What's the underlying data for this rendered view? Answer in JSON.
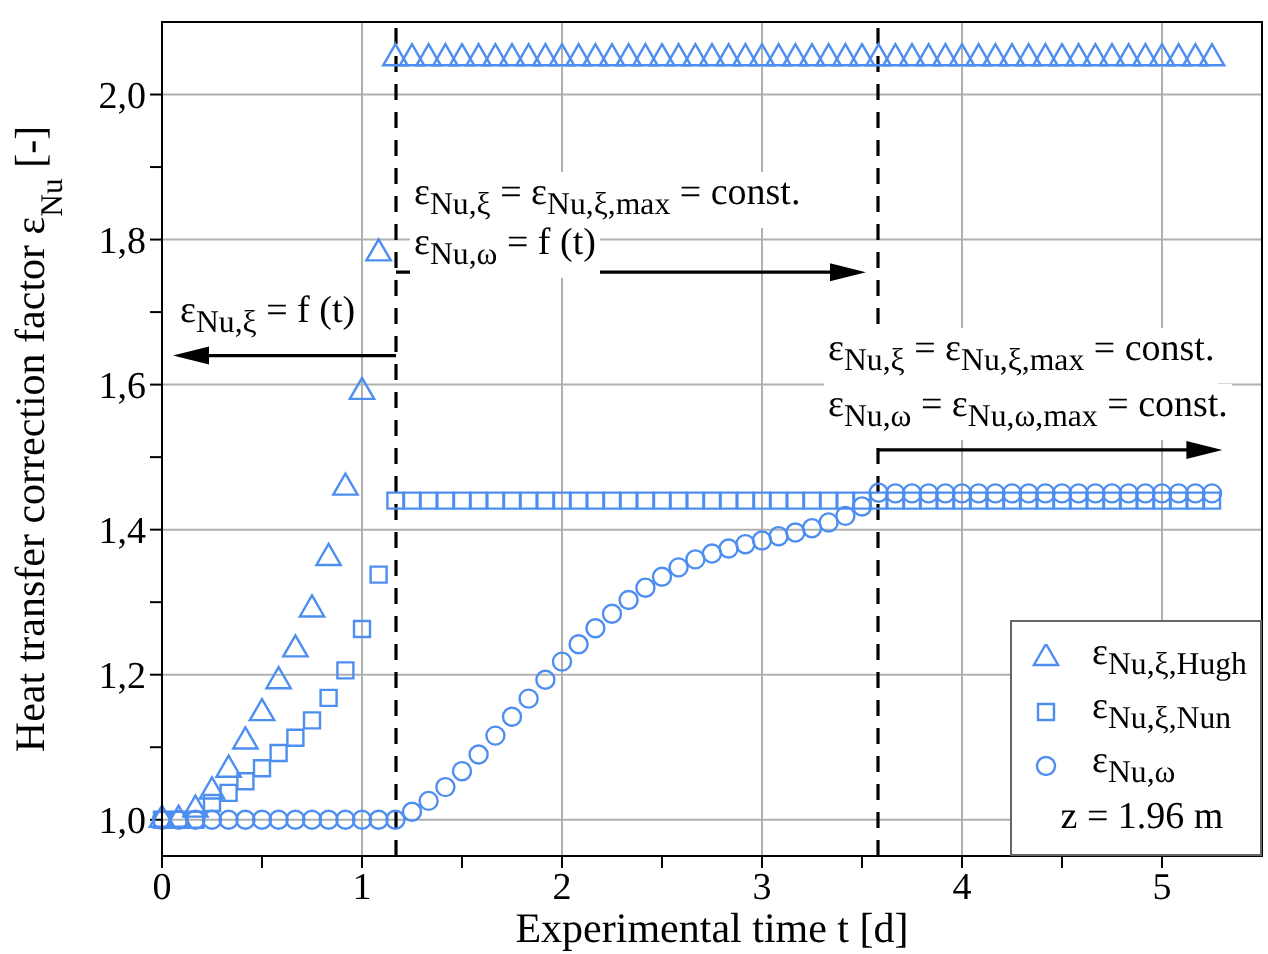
{
  "chart_data": {
    "type": "scatter",
    "xlabel": "Experimental time t [d]",
    "ylabel": "Heat transfer correction factor ε$_{Nu}$ [-]",
    "x": [
      0,
      0.083,
      0.167,
      0.25,
      0.333,
      0.417,
      0.5,
      0.583,
      0.667,
      0.75,
      0.833,
      0.917,
      1,
      1.083,
      1.167,
      1.25,
      1.333,
      1.417,
      1.5,
      1.583,
      1.667,
      1.75,
      1.833,
      1.917,
      2,
      2.083,
      2.167,
      2.25,
      2.333,
      2.417,
      2.5,
      2.583,
      2.667,
      2.75,
      2.833,
      2.917,
      3,
      3.083,
      3.167,
      3.25,
      3.333,
      3.417,
      3.5,
      3.583,
      3.667,
      3.75,
      3.833,
      3.917,
      4,
      4.083,
      4.167,
      4.25,
      4.333,
      4.417,
      4.5,
      4.583,
      4.667,
      4.75,
      4.833,
      4.917,
      5,
      5.083,
      5.167,
      5.25
    ],
    "series": [
      {
        "name": "ε$_{Nu,ξ,Hugh}$",
        "color": "#4d8ef0",
        "marker": "triangle",
        "values": [
          1.0,
          1.0,
          1.014,
          1.039,
          1.069,
          1.108,
          1.147,
          1.191,
          1.235,
          1.29,
          1.361,
          1.458,
          1.59,
          1.781,
          2.05,
          2.05,
          2.05,
          2.05,
          2.05,
          2.05,
          2.05,
          2.05,
          2.05,
          2.05,
          2.05,
          2.05,
          2.05,
          2.05,
          2.05,
          2.05,
          2.05,
          2.05,
          2.05,
          2.05,
          2.05,
          2.05,
          2.05,
          2.05,
          2.05,
          2.05,
          2.05,
          2.05,
          2.05,
          2.05,
          2.05,
          2.05,
          2.05,
          2.05,
          2.05,
          2.05,
          2.05,
          2.05,
          2.05,
          2.05,
          2.05,
          2.05,
          2.05,
          2.05,
          2.05,
          2.05,
          2.05,
          2.05,
          2.05,
          2.05
        ]
      },
      {
        "name": "ε$_{Nu,ξ,Nun}$",
        "color": "#4d8ef0",
        "marker": "square",
        "values": [
          1.0,
          1.0,
          1.0,
          1.023,
          1.037,
          1.053,
          1.071,
          1.092,
          1.113,
          1.137,
          1.168,
          1.206,
          1.263,
          1.338,
          1.44,
          1.44,
          1.44,
          1.44,
          1.44,
          1.44,
          1.44,
          1.44,
          1.44,
          1.44,
          1.44,
          1.44,
          1.44,
          1.44,
          1.44,
          1.44,
          1.44,
          1.44,
          1.44,
          1.44,
          1.44,
          1.44,
          1.44,
          1.44,
          1.44,
          1.44,
          1.44,
          1.44,
          1.44,
          1.44,
          1.44,
          1.44,
          1.44,
          1.44,
          1.44,
          1.44,
          1.44,
          1.44,
          1.44,
          1.44,
          1.44,
          1.44,
          1.44,
          1.44,
          1.44,
          1.44,
          1.44,
          1.44,
          1.44,
          1.44
        ]
      },
      {
        "name": "ε$_{Nu,ω}$",
        "color": "#4d8ef0",
        "marker": "circle",
        "values": [
          1.0,
          1.0,
          1.0,
          1.0,
          1.0,
          1.0,
          1.0,
          1.0,
          1.0,
          1.0,
          1.0,
          1.0,
          1.0,
          1.0,
          1.0,
          1.011,
          1.026,
          1.045,
          1.067,
          1.09,
          1.116,
          1.142,
          1.167,
          1.193,
          1.218,
          1.242,
          1.264,
          1.284,
          1.303,
          1.32,
          1.335,
          1.348,
          1.359,
          1.367,
          1.374,
          1.38,
          1.385,
          1.391,
          1.396,
          1.402,
          1.41,
          1.419,
          1.432,
          1.451,
          1.45,
          1.45,
          1.45,
          1.45,
          1.45,
          1.45,
          1.45,
          1.45,
          1.45,
          1.45,
          1.45,
          1.45,
          1.45,
          1.45,
          1.45,
          1.45,
          1.45,
          1.45,
          1.45,
          1.45
        ]
      }
    ],
    "xlim": [
      0,
      5.5
    ],
    "xticks": [
      0,
      {
        "value": 0.5,
        "label": null
      },
      1,
      {
        "value": 1.5,
        "label": null
      },
      2,
      {
        "value": 2.5,
        "label": null
      },
      3,
      {
        "value": 3.5,
        "label": null
      },
      4,
      {
        "value": 4.5,
        "label": null
      },
      5
    ],
    "ylim": [
      0.95,
      2.1
    ],
    "yticks": [
      {
        "value": 1.0,
        "label": "1,0"
      },
      {
        "value": 1.1,
        "label": null
      },
      {
        "value": 1.2,
        "label": "1,2"
      },
      {
        "value": 1.3,
        "label": null
      },
      {
        "value": 1.4,
        "label": "1,4"
      },
      {
        "value": 1.5,
        "label": null
      },
      {
        "value": 1.6,
        "label": "1,6"
      },
      {
        "value": 1.7,
        "label": null
      },
      {
        "value": 1.8,
        "label": "1,8"
      },
      {
        "value": 1.9,
        "label": null
      },
      {
        "value": 2.0,
        "label": "2,0"
      }
    ],
    "grid": true,
    "legend": "bottom right",
    "ref_lines": [
      {
        "axis": "x",
        "value": 1.17,
        "color": "#000000",
        "line_style": "dashed"
      },
      {
        "axis": "x",
        "value": 3.58,
        "color": "#000000",
        "line_style": "dashed"
      }
    ],
    "annotations": [
      {
        "text": "ε$_{Nu,ξ}$ = f (t)",
        "x": 1.17,
        "y": 1.64
      },
      "ε$_{Nu,ξ}$ = ε$_{Nu,ξ,max}$ = const.",
      "ε$_{Nu,ω}$ = f (t)",
      "ε$_{Nu,ξ}$ = ε$_{Nu,ξ,max}$ = const.",
      {
        "text": "ε$_{Nu,ω}$ = ε$_{Nu,ω,max}$ = const.",
        "x": 3.58,
        "y": 1.51
      },
      "z = 1.96 m"
    ]
  }
}
